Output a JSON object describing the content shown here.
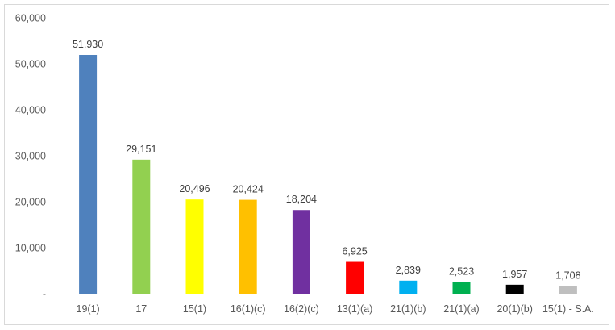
{
  "chart_data": {
    "type": "bar",
    "categories": [
      "19(1)",
      "17",
      "15(1)",
      "16(1)(c)",
      "16(2)(c)",
      "13(1)(a)",
      "21(1)(b)",
      "21(1)(a)",
      "20(1)(b)",
      "15(1) - S.A."
    ],
    "values": [
      51930,
      29151,
      20496,
      20424,
      18204,
      6925,
      2839,
      2523,
      1957,
      1708
    ],
    "data_labels": [
      "51,930",
      "29,151",
      "20,496",
      "20,424",
      "18,204",
      "6,925",
      "2,839",
      "2,523",
      "1,957",
      "1,708"
    ],
    "colors": [
      "#4f81bd",
      "#92d050",
      "#ffff00",
      "#ffc000",
      "#7030a0",
      "#ff0000",
      "#00b0f0",
      "#00b050",
      "#000000",
      "#bfbfbf"
    ],
    "title": "",
    "xlabel": "",
    "ylabel": "",
    "ylim": [
      0,
      60000
    ],
    "yticks": [
      0,
      10000,
      20000,
      30000,
      40000,
      50000,
      60000
    ],
    "ytick_labels": [
      "-",
      "10,000",
      "20,000",
      "30,000",
      "40,000",
      "50,000",
      "60,000"
    ],
    "grid": false,
    "legend": "none"
  }
}
